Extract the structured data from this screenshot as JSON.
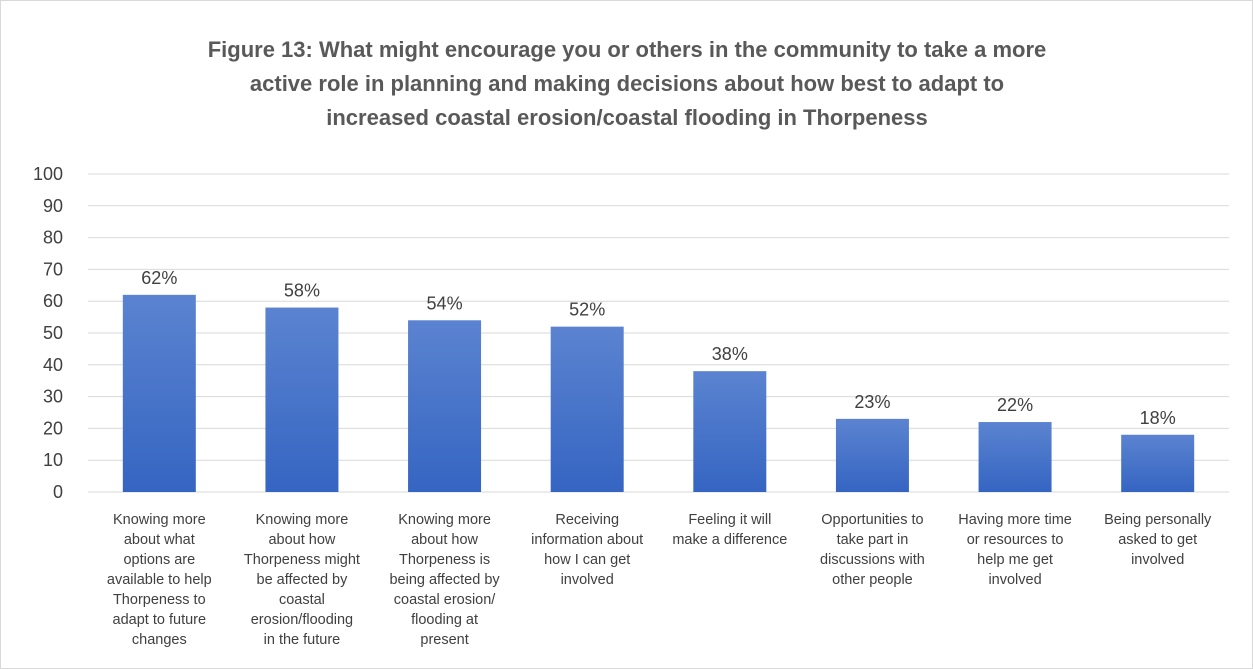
{
  "chart_data": {
    "type": "bar",
    "title_lines": [
      "Figure 13: What might encourage you or others in the community to take a more",
      "active role in planning and making decisions about how best to adapt to",
      "increased coastal erosion/coastal flooding in Thorpeness"
    ],
    "categories": [
      [
        "Knowing more",
        "about what",
        "options are",
        "available to help",
        "Thorpeness to",
        "adapt to future",
        "changes"
      ],
      [
        "Knowing more",
        "about how",
        "Thorpeness might",
        "be affected by",
        "coastal",
        "erosion/flooding",
        "in the future"
      ],
      [
        "Knowing more",
        "about how",
        "Thorpeness is",
        "being affected by",
        "coastal erosion/",
        "flooding at",
        "present"
      ],
      [
        "Receiving",
        "information about",
        "how I can get",
        "involved"
      ],
      [
        "Feeling it will",
        "make a difference"
      ],
      [
        "Opportunities to",
        "take part in",
        "discussions with",
        "other people"
      ],
      [
        "Having more time",
        "or resources to",
        "help me get",
        "involved"
      ],
      [
        "Being personally",
        "asked to get",
        "involved"
      ]
    ],
    "values": [
      62,
      58,
      54,
      52,
      38,
      23,
      22,
      18
    ],
    "data_labels": [
      "62%",
      "58%",
      "54%",
      "52%",
      "38%",
      "23%",
      "22%",
      "18%"
    ],
    "ylim": [
      0,
      100
    ],
    "yticks": [
      "0",
      "10",
      "20",
      "30",
      "40",
      "50",
      "60",
      "70",
      "80",
      "90",
      "100"
    ],
    "xlabel": "",
    "ylabel": "",
    "grid": true,
    "legend": "none",
    "colors": {
      "bar_top": "#5b83d0",
      "bar_bottom": "#3565c2",
      "grid": "#d9d9d9",
      "text": "#404040",
      "title": "#595959"
    }
  }
}
